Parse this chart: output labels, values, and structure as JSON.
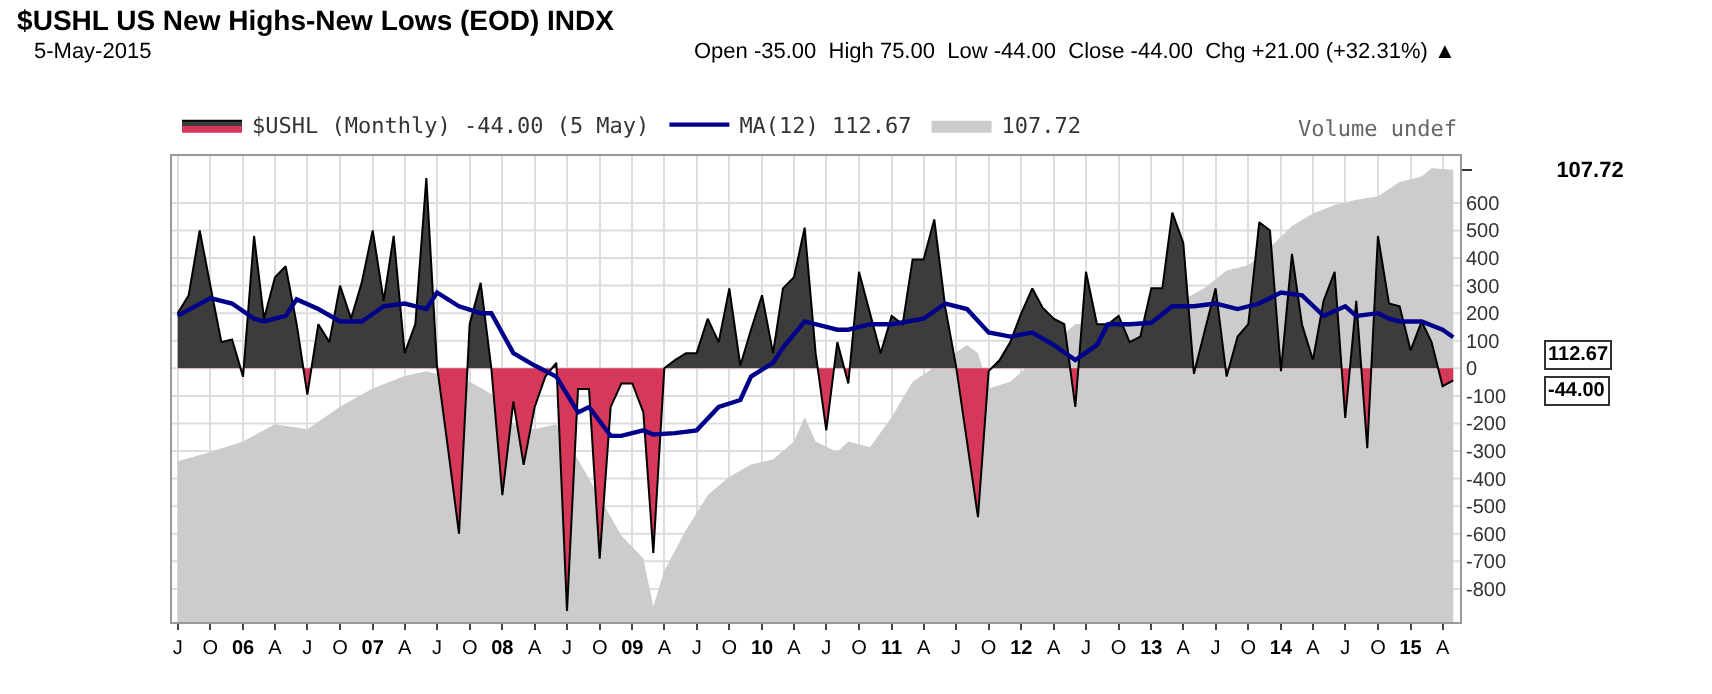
{
  "chart_data": {
    "type": "area",
    "title": "$USHL US New Highs-New Lows (EOD) INDX",
    "subtitle": "5-May-2015",
    "annotations": [
      "Open -35.00  High 75.00  Low -44.00  Close -44.00  Chg +21.00 (+32.31%) ▲",
      "Volume undef",
      "112.67",
      "-44.00"
    ],
    "x": [
      "2005-07",
      "2005-08",
      "2005-09",
      "2005-10",
      "2005-11",
      "2005-12",
      "2006-01",
      "2006-02",
      "2006-03",
      "2006-04",
      "2006-05",
      "2006-06",
      "2006-07",
      "2006-08",
      "2006-09",
      "2006-10",
      "2006-11",
      "2006-12",
      "2007-01",
      "2007-02",
      "2007-03",
      "2007-04",
      "2007-05",
      "2007-06",
      "2007-07",
      "2007-08",
      "2007-09",
      "2007-10",
      "2007-11",
      "2007-12",
      "2008-01",
      "2008-02",
      "2008-03",
      "2008-04",
      "2008-05",
      "2008-06",
      "2008-07",
      "2008-08",
      "2008-09",
      "2008-10",
      "2008-11",
      "2008-12",
      "2009-01",
      "2009-02",
      "2009-03",
      "2009-04",
      "2009-05",
      "2009-06",
      "2009-07",
      "2009-08",
      "2009-09",
      "2009-10",
      "2009-11",
      "2009-12",
      "2010-01",
      "2010-02",
      "2010-03",
      "2010-04",
      "2010-05",
      "2010-06",
      "2010-07",
      "2010-08",
      "2010-09",
      "2010-10",
      "2010-11",
      "2010-12",
      "2011-01",
      "2011-02",
      "2011-03",
      "2011-04",
      "2011-05",
      "2011-06",
      "2011-07",
      "2011-08",
      "2011-09",
      "2011-10",
      "2011-11",
      "2011-12",
      "2012-01",
      "2012-02",
      "2012-03",
      "2012-04",
      "2012-05",
      "2012-06",
      "2012-07",
      "2012-08",
      "2012-09",
      "2012-10",
      "2012-11",
      "2012-12",
      "2013-01",
      "2013-02",
      "2013-03",
      "2013-04",
      "2013-05",
      "2013-06",
      "2013-07",
      "2013-08",
      "2013-09",
      "2013-10",
      "2013-11",
      "2013-12",
      "2014-01",
      "2014-02",
      "2014-03",
      "2014-04",
      "2014-05",
      "2014-06",
      "2014-07",
      "2014-08",
      "2014-09",
      "2014-10",
      "2014-11",
      "2014-12",
      "2015-01",
      "2015-02",
      "2015-03",
      "2015-04",
      "2015-05"
    ],
    "series": [
      {
        "name": "$USHL (Monthly) -44.00 (5 May)",
        "color": "#000000",
        "colors": [
          "#3c3c3c",
          "#3c3c3c",
          "#3c3c3c",
          "#3c3c3c",
          "#3c3c3c",
          "#3c3c3c",
          "#d6385a",
          "#3c3c3c",
          "#3c3c3c",
          "#3c3c3c",
          "#3c3c3c",
          "#3c3c3c",
          "#d6385a",
          "#3c3c3c",
          "#3c3c3c",
          "#3c3c3c",
          "#3c3c3c",
          "#3c3c3c",
          "#3c3c3c",
          "#3c3c3c",
          "#3c3c3c",
          "#3c3c3c",
          "#3c3c3c",
          "#3c3c3c",
          "#3c3c3c",
          "#d6385a",
          "#d6385a",
          "#3c3c3c",
          "#3c3c3c",
          "#3c3c3c",
          "#d6385a",
          "#d6385a",
          "#d6385a",
          "#d6385a",
          "#d6385a",
          "#3c3c3c",
          "#d6385a",
          "#d6385a",
          "#d6385a",
          "#d6385a",
          "#d6385a",
          "#d6385a",
          "#d6385a",
          "#d6385a",
          "#d6385a",
          "#3c3c3c",
          "#3c3c3c",
          "#3c3c3c",
          "#3c3c3c",
          "#3c3c3c",
          "#3c3c3c",
          "#3c3c3c",
          "#3c3c3c",
          "#3c3c3c",
          "#3c3c3c",
          "#3c3c3c",
          "#3c3c3c",
          "#3c3c3c",
          "#3c3c3c",
          "#3c3c3c",
          "#d6385a",
          "#3c3c3c",
          "#d6385a",
          "#3c3c3c",
          "#3c3c3c",
          "#3c3c3c",
          "#3c3c3c",
          "#3c3c3c",
          "#3c3c3c",
          "#3c3c3c",
          "#3c3c3c",
          "#3c3c3c",
          "#3c3c3c",
          "#d6385a",
          "#d6385a",
          "#d6385a",
          "#3c3c3c",
          "#3c3c3c",
          "#3c3c3c",
          "#3c3c3c",
          "#3c3c3c",
          "#3c3c3c",
          "#3c3c3c",
          "#d6385a",
          "#3c3c3c",
          "#3c3c3c",
          "#3c3c3c",
          "#3c3c3c",
          "#3c3c3c",
          "#3c3c3c",
          "#3c3c3c",
          "#3c3c3c",
          "#3c3c3c",
          "#3c3c3c",
          "#d6385a",
          "#3c3c3c",
          "#3c3c3c",
          "#d6385a",
          "#3c3c3c",
          "#3c3c3c",
          "#3c3c3c",
          "#3c3c3c",
          "#d6385a",
          "#3c3c3c",
          "#3c3c3c",
          "#3c3c3c",
          "#3c3c3c",
          "#3c3c3c",
          "#d6385a",
          "#3c3c3c",
          "#d6385a",
          "#3c3c3c",
          "#3c3c3c",
          "#3c3c3c",
          "#3c3c3c",
          "#3c3c3c",
          "#3c3c3c",
          "#d6385a",
          "#d6385a"
        ],
        "values": [
          200,
          265,
          500,
          300,
          95,
          105,
          -30,
          480,
          180,
          330,
          370,
          160,
          -95,
          160,
          95,
          300,
          180,
          310,
          500,
          245,
          480,
          55,
          160,
          690,
          10,
          -290,
          -600,
          160,
          310,
          0,
          -460,
          -120,
          -350,
          -140,
          -30,
          20,
          -880,
          -75,
          -75,
          -690,
          -140,
          -55,
          -55,
          -160,
          -670,
          0,
          30,
          55,
          55,
          180,
          95,
          290,
          10,
          140,
          265,
          55,
          290,
          330,
          510,
          55,
          -225,
          95,
          -55,
          350,
          200,
          55,
          190,
          160,
          395,
          395,
          540,
          220,
          10,
          -265,
          -540,
          -10,
          30,
          95,
          200,
          290,
          220,
          180,
          160,
          -140,
          350,
          160,
          160,
          190,
          95,
          115,
          290,
          290,
          565,
          455,
          -20,
          140,
          290,
          -30,
          115,
          160,
          530,
          500,
          -10,
          415,
          160,
          30,
          245,
          350,
          -180,
          245,
          -290,
          480,
          235,
          225,
          65,
          170,
          95,
          -65,
          -44
        ]
      },
      {
        "name": "MA(12) 112.67",
        "type": "line",
        "color": "#00008b",
        "x": [
          "2005-07",
          "2005-10",
          "2005-12",
          "2006-02",
          "2006-03",
          "2006-05",
          "2006-06",
          "2006-08",
          "2006-10",
          "2006-12",
          "2007-02",
          "2007-04",
          "2007-06",
          "2007-07",
          "2007-09",
          "2007-11",
          "2007-12",
          "2008-02",
          "2008-04",
          "2008-06",
          "2008-08",
          "2008-09",
          "2008-11",
          "2008-12",
          "2009-02",
          "2009-03",
          "2009-05",
          "2009-07",
          "2009-09",
          "2009-11",
          "2009-12",
          "2010-02",
          "2010-03",
          "2010-05",
          "2010-07",
          "2010-08",
          "2010-09",
          "2010-11",
          "2011-01",
          "2011-04",
          "2011-06",
          "2011-08",
          "2011-10",
          "2011-12",
          "2012-02",
          "2012-04",
          "2012-06",
          "2012-08",
          "2012-09",
          "2012-11",
          "2013-01",
          "2013-03",
          "2013-05",
          "2013-07",
          "2013-09",
          "2013-11",
          "2014-01",
          "2014-03",
          "2014-05",
          "2014-07",
          "2014-08",
          "2014-10",
          "2014-11",
          "2014-12",
          "2015-02",
          "2015-04",
          "2015-05"
        ],
        "values": [
          190,
          255,
          235,
          180,
          170,
          190,
          250,
          215,
          170,
          170,
          225,
          235,
          215,
          275,
          225,
          200,
          200,
          55,
          10,
          -30,
          -160,
          -140,
          -245,
          -245,
          -225,
          -240,
          -235,
          -225,
          -140,
          -115,
          -30,
          20,
          75,
          170,
          150,
          140,
          140,
          160,
          160,
          180,
          235,
          215,
          130,
          115,
          130,
          85,
          30,
          85,
          160,
          160,
          165,
          225,
          225,
          235,
          215,
          235,
          275,
          265,
          190,
          225,
          190,
          200,
          180,
          170,
          170,
          140,
          112.67
        ]
      },
      {
        "name": "107.72",
        "type": "area",
        "axis": "y2",
        "color": "#cccccc",
        "x": [
          "2005-07",
          "2005-10",
          "2006-01",
          "2006-04",
          "2006-07",
          "2006-10",
          "2007-01",
          "2007-04",
          "2007-06",
          "2007-08",
          "2007-10",
          "2007-12",
          "2008-02",
          "2008-04",
          "2008-06",
          "2008-08",
          "2008-10",
          "2008-12",
          "2009-02",
          "2009-03",
          "2009-04",
          "2009-06",
          "2009-08",
          "2009-10",
          "2009-12",
          "2010-02",
          "2010-04",
          "2010-05",
          "2010-06",
          "2010-08",
          "2010-09",
          "2010-11",
          "2011-01",
          "2011-03",
          "2011-05",
          "2011-06",
          "2011-08",
          "2011-09",
          "2011-10",
          "2011-12",
          "2012-02",
          "2012-04",
          "2012-06",
          "2012-08",
          "2012-10",
          "2012-12",
          "2013-02",
          "2013-04",
          "2013-06",
          "2013-08",
          "2013-10",
          "2013-12",
          "2014-02",
          "2014-04",
          "2014-06",
          "2014-08",
          "2014-10",
          "2014-12",
          "2015-02",
          "2015-03",
          "2015-05"
        ],
        "values": [
          38.3,
          40.5,
          43,
          47.1,
          45.9,
          51.3,
          55.6,
          58.6,
          59.7,
          null,
          57.2,
          54.3,
          47.1,
          45.9,
          47.1,
          38.7,
          null,
          20.6,
          15.1,
          3.7,
          12.2,
          21.9,
          30.2,
          34.6,
          37.5,
          38.7,
          43,
          48.8,
          43,
          40.5,
          43,
          41.6,
          48.8,
          57.2,
          null,
          null,
          66,
          64,
          55.6,
          57.2,
          null,
          null,
          71,
          null,
          71,
          71,
          null,
          null,
          79.6,
          83.7,
          85,
          89.2,
          94.3,
          97.3,
          99.3,
          100.6,
          101.4,
          104.8,
          106.1,
          108.1,
          107.72
        ]
      }
    ],
    "ylim": [
      -920,
      770
    ],
    "yticks": [
      -800,
      -700,
      -600,
      -500,
      -400,
      -300,
      -200,
      -100,
      0,
      100,
      200,
      300,
      400,
      500,
      600
    ],
    "y2lim": [
      0,
      111
    ],
    "y2ticks": [
      107.72
    ],
    "xlim": [
      "2005-06-15",
      "2015-05-20"
    ],
    "xticks": [
      {
        "value": "2005-07",
        "label": "J"
      },
      {
        "value": "2005-10",
        "label": "O"
      },
      {
        "value": "2006-01",
        "label": "06"
      },
      {
        "value": "2006-04",
        "label": "A"
      },
      {
        "value": "2006-07",
        "label": "J"
      },
      {
        "value": "2006-10",
        "label": "O"
      },
      {
        "value": "2007-01",
        "label": "07"
      },
      {
        "value": "2007-04",
        "label": "A"
      },
      {
        "value": "2007-07",
        "label": "J"
      },
      {
        "value": "2007-10",
        "label": "O"
      },
      {
        "value": "2008-01",
        "label": "08"
      },
      {
        "value": "2008-04",
        "label": "A"
      },
      {
        "value": "2008-07",
        "label": "J"
      },
      {
        "value": "2008-10",
        "label": "O"
      },
      {
        "value": "2009-01",
        "label": "09"
      },
      {
        "value": "2009-04",
        "label": "A"
      },
      {
        "value": "2009-07",
        "label": "J"
      },
      {
        "value": "2009-10",
        "label": "O"
      },
      {
        "value": "2010-01",
        "label": "10"
      },
      {
        "value": "2010-04",
        "label": "A"
      },
      {
        "value": "2010-07",
        "label": "J"
      },
      {
        "value": "2010-10",
        "label": "O"
      },
      {
        "value": "2011-01",
        "label": "11"
      },
      {
        "value": "2011-04",
        "label": "A"
      },
      {
        "value": "2011-07",
        "label": "J"
      },
      {
        "value": "2011-10",
        "label": "O"
      },
      {
        "value": "2012-01",
        "label": "12"
      },
      {
        "value": "2012-04",
        "label": "A"
      },
      {
        "value": "2012-07",
        "label": "J"
      },
      {
        "value": "2012-10",
        "label": "O"
      },
      {
        "value": "2013-01",
        "label": "13"
      },
      {
        "value": "2013-04",
        "label": "A"
      },
      {
        "value": "2013-07",
        "label": "J"
      },
      {
        "value": "2013-10",
        "label": "O"
      },
      {
        "value": "2014-01",
        "label": "14"
      },
      {
        "value": "2014-04",
        "label": "A"
      },
      {
        "value": "2014-07",
        "label": "J"
      },
      {
        "value": "2014-10",
        "label": "O"
      },
      {
        "value": "2015-01",
        "label": "15"
      },
      {
        "value": "2015-04",
        "label": "A"
      }
    ],
    "grid": true,
    "legend": "top left"
  }
}
